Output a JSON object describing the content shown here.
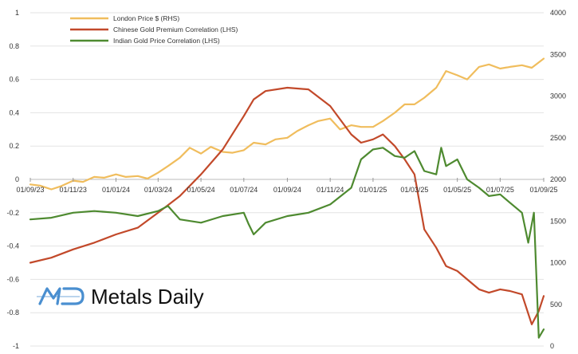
{
  "chart_data": {
    "type": "line",
    "title": "",
    "xlabel": "",
    "ylabel_left": "",
    "ylabel_right": "",
    "ylim_left": [
      -1,
      1
    ],
    "ylim_right": [
      0,
      4000
    ],
    "yticks_left": [
      "1",
      "0.8",
      "0.6",
      "0.4",
      "0.2",
      "0",
      "-0.2",
      "-0.4",
      "-0.6",
      "-0.8",
      "-1"
    ],
    "yticks_right": [
      "4000",
      "3500",
      "3000",
      "2500",
      "2000",
      "1500",
      "1000",
      "500",
      "0"
    ],
    "xticks": [
      "01/09/23",
      "01/11/23",
      "01/01/24",
      "01/03/24",
      "01/05/24",
      "01/07/24",
      "01/09/24",
      "01/11/24",
      "01/01/25",
      "01/03/25",
      "01/05/25",
      "01/07/25",
      "01/09/25"
    ],
    "grid": "horizontal",
    "legend_position": "top-left",
    "series": [
      {
        "name": "London Price $ (RHS)",
        "axis": "right",
        "color": "#f0bd5d",
        "points": [
          [
            "01/09/23",
            1940
          ],
          [
            "15/09/23",
            1925
          ],
          [
            "01/10/23",
            1880
          ],
          [
            "15/10/23",
            1920
          ],
          [
            "01/11/23",
            1985
          ],
          [
            "15/11/23",
            1970
          ],
          [
            "01/12/23",
            2030
          ],
          [
            "15/12/23",
            2020
          ],
          [
            "01/01/24",
            2060
          ],
          [
            "15/01/24",
            2030
          ],
          [
            "01/02/24",
            2040
          ],
          [
            "15/02/24",
            2010
          ],
          [
            "01/03/24",
            2080
          ],
          [
            "15/03/24",
            2160
          ],
          [
            "01/04/24",
            2260
          ],
          [
            "15/04/24",
            2380
          ],
          [
            "01/05/24",
            2310
          ],
          [
            "15/05/24",
            2390
          ],
          [
            "01/06/24",
            2330
          ],
          [
            "15/06/24",
            2320
          ],
          [
            "01/07/24",
            2350
          ],
          [
            "15/07/24",
            2440
          ],
          [
            "01/08/24",
            2420
          ],
          [
            "15/08/24",
            2480
          ],
          [
            "01/09/24",
            2500
          ],
          [
            "15/09/24",
            2580
          ],
          [
            "01/10/24",
            2650
          ],
          [
            "15/10/24",
            2700
          ],
          [
            "01/11/24",
            2730
          ],
          [
            "15/11/24",
            2600
          ],
          [
            "01/12/24",
            2650
          ],
          [
            "15/12/24",
            2630
          ],
          [
            "01/01/25",
            2630
          ],
          [
            "15/01/25",
            2700
          ],
          [
            "01/02/25",
            2800
          ],
          [
            "15/02/25",
            2900
          ],
          [
            "01/03/25",
            2900
          ],
          [
            "15/03/25",
            2980
          ],
          [
            "01/04/25",
            3100
          ],
          [
            "15/04/25",
            3300
          ],
          [
            "01/05/25",
            3250
          ],
          [
            "15/05/25",
            3200
          ],
          [
            "01/06/25",
            3350
          ],
          [
            "15/06/25",
            3380
          ],
          [
            "01/07/25",
            3330
          ],
          [
            "15/07/25",
            3350
          ],
          [
            "01/08/25",
            3370
          ],
          [
            "15/08/25",
            3340
          ],
          [
            "01/09/25",
            3450
          ]
        ]
      },
      {
        "name": "Chinese Gold Premium Correlation (LHS)",
        "axis": "left",
        "color": "#c2492a",
        "points": [
          [
            "01/09/23",
            -0.5
          ],
          [
            "01/10/23",
            -0.47
          ],
          [
            "01/11/23",
            -0.42
          ],
          [
            "01/12/23",
            -0.38
          ],
          [
            "01/01/24",
            -0.33
          ],
          [
            "01/02/24",
            -0.29
          ],
          [
            "01/03/24",
            -0.2
          ],
          [
            "01/04/24",
            -0.1
          ],
          [
            "01/05/24",
            0.03
          ],
          [
            "01/06/24",
            0.18
          ],
          [
            "01/07/24",
            0.38
          ],
          [
            "15/07/24",
            0.48
          ],
          [
            "01/08/24",
            0.53
          ],
          [
            "01/09/24",
            0.55
          ],
          [
            "01/10/24",
            0.54
          ],
          [
            "01/11/24",
            0.44
          ],
          [
            "01/12/24",
            0.27
          ],
          [
            "15/12/24",
            0.22
          ],
          [
            "01/01/25",
            0.24
          ],
          [
            "15/01/25",
            0.27
          ],
          [
            "01/02/25",
            0.2
          ],
          [
            "15/02/25",
            0.12
          ],
          [
            "01/03/25",
            0.03
          ],
          [
            "15/03/25",
            -0.3
          ],
          [
            "01/04/25",
            -0.41
          ],
          [
            "15/04/25",
            -0.52
          ],
          [
            "01/05/25",
            -0.55
          ],
          [
            "15/05/25",
            -0.6
          ],
          [
            "01/06/25",
            -0.66
          ],
          [
            "15/06/25",
            -0.68
          ],
          [
            "01/07/25",
            -0.66
          ],
          [
            "15/07/25",
            -0.67
          ],
          [
            "01/08/25",
            -0.69
          ],
          [
            "15/08/25",
            -0.87
          ],
          [
            "25/08/25",
            -0.79
          ],
          [
            "01/09/25",
            -0.7
          ]
        ]
      },
      {
        "name": "Indian Gold Price Correlation (LHS)",
        "axis": "left",
        "color": "#4e8a30",
        "points": [
          [
            "01/09/23",
            -0.24
          ],
          [
            "01/10/23",
            -0.23
          ],
          [
            "01/11/23",
            -0.2
          ],
          [
            "01/12/23",
            -0.19
          ],
          [
            "01/01/24",
            -0.2
          ],
          [
            "01/02/24",
            -0.22
          ],
          [
            "01/03/24",
            -0.19
          ],
          [
            "15/03/24",
            -0.16
          ],
          [
            "01/04/24",
            -0.24
          ],
          [
            "01/05/24",
            -0.26
          ],
          [
            "01/06/24",
            -0.22
          ],
          [
            "01/07/24",
            -0.2
          ],
          [
            "08/07/24",
            -0.27
          ],
          [
            "15/07/24",
            -0.33
          ],
          [
            "01/08/24",
            -0.26
          ],
          [
            "01/09/24",
            -0.22
          ],
          [
            "01/10/24",
            -0.2
          ],
          [
            "01/11/24",
            -0.15
          ],
          [
            "01/12/24",
            -0.05
          ],
          [
            "15/12/24",
            0.12
          ],
          [
            "01/01/25",
            0.18
          ],
          [
            "15/01/25",
            0.19
          ],
          [
            "01/02/25",
            0.14
          ],
          [
            "15/02/25",
            0.13
          ],
          [
            "01/03/25",
            0.17
          ],
          [
            "15/03/25",
            0.05
          ],
          [
            "01/04/25",
            0.03
          ],
          [
            "08/04/25",
            0.19
          ],
          [
            "15/04/25",
            0.08
          ],
          [
            "01/05/25",
            0.12
          ],
          [
            "15/05/25",
            0.0
          ],
          [
            "01/06/25",
            -0.05
          ],
          [
            "15/06/25",
            -0.1
          ],
          [
            "01/07/25",
            -0.09
          ],
          [
            "15/07/25",
            -0.14
          ],
          [
            "01/08/25",
            -0.2
          ],
          [
            "10/08/25",
            -0.38
          ],
          [
            "18/08/25",
            -0.2
          ],
          [
            "25/08/25",
            -0.95
          ],
          [
            "01/09/25",
            -0.9
          ]
        ]
      }
    ]
  },
  "brand": {
    "name": "Metals Daily",
    "logo_letters": "MD"
  }
}
